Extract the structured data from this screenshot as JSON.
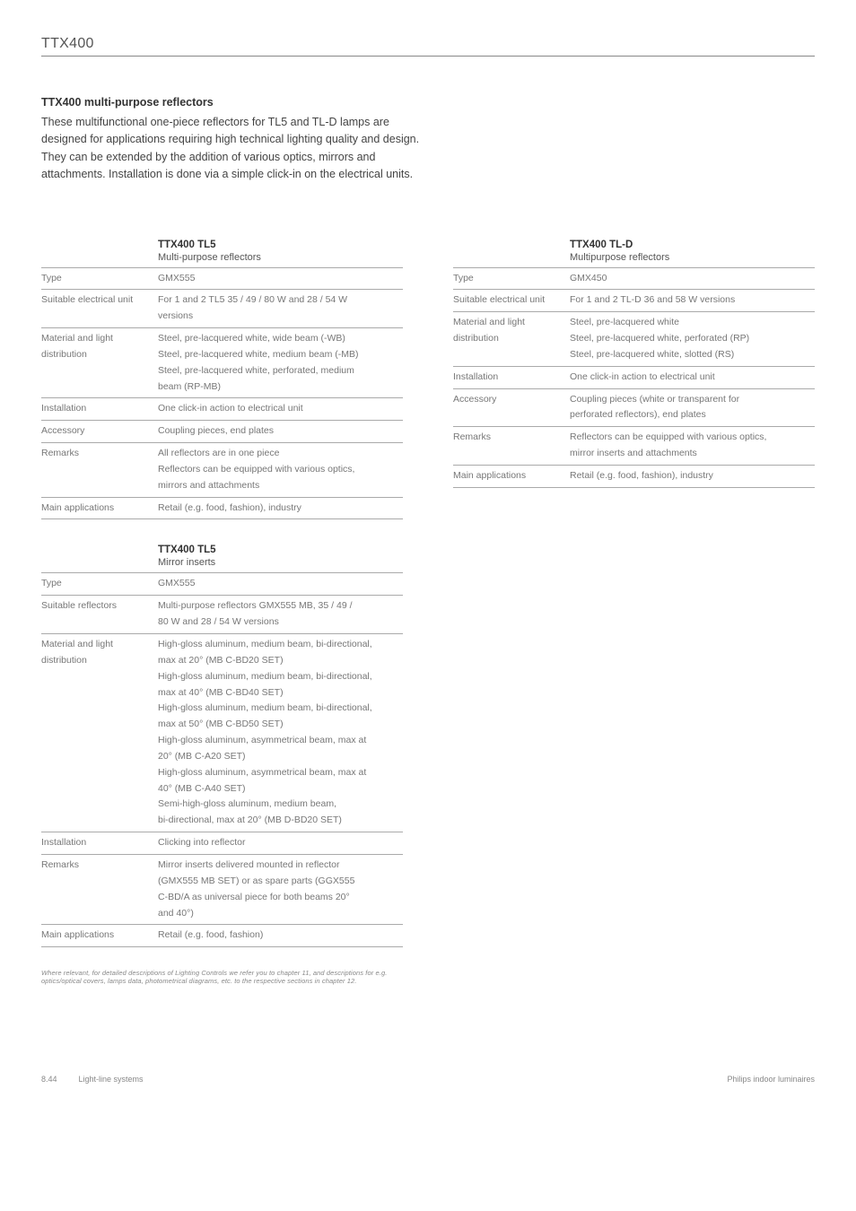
{
  "page_header": "TTX400",
  "intro": {
    "title": "TTX400 multi-purpose reflectors",
    "body": "These multifunctional one-piece reflectors for TL5 and TL-D lamps are designed for applications requiring high technical lighting quality and design. They can be extended by the addition of various optics, mirrors and attachments. Installation is done via a simple click-in on the electrical units."
  },
  "block1": {
    "title": "TTX400 TL5",
    "subtitle": "Multi-purpose reflectors",
    "rows": [
      {
        "label": "Type",
        "lines": [
          "GMX555"
        ]
      },
      {
        "label": "Suitable electrical unit",
        "lines": [
          "For 1 and 2 TL5 35 / 49 / 80 W and 28 / 54 W",
          "versions"
        ]
      },
      {
        "label": "Material and light distribution",
        "lines": [
          "Steel, pre-lacquered white, wide beam (-WB)",
          "Steel, pre-lacquered white, medium beam (-MB)",
          "Steel, pre-lacquered white, perforated, medium",
          "beam (RP-MB)"
        ]
      },
      {
        "label": "Installation",
        "lines": [
          "One click-in action to electrical unit"
        ]
      },
      {
        "label": "Accessory",
        "lines": [
          "Coupling pieces, end plates"
        ]
      },
      {
        "label": "Remarks",
        "lines": [
          "All reflectors are in one piece",
          "Reflectors can be equipped with various optics,",
          "mirrors and attachments"
        ]
      },
      {
        "label": "Main applications",
        "lines": [
          "Retail (e.g. food, fashion), industry"
        ]
      }
    ]
  },
  "block2": {
    "title": "TTX400 TL-D",
    "subtitle": "Multipurpose reflectors",
    "rows": [
      {
        "label": "Type",
        "lines": [
          "GMX450"
        ]
      },
      {
        "label": "Suitable electrical unit",
        "lines": [
          "For 1 and 2 TL-D 36 and 58 W versions"
        ]
      },
      {
        "label": "Material and light distribution",
        "lines": [
          "Steel, pre-lacquered white",
          "Steel, pre-lacquered white, perforated (RP)",
          "Steel, pre-lacquered white, slotted (RS)"
        ]
      },
      {
        "label": "Installation",
        "lines": [
          "One click-in action to electrical unit"
        ]
      },
      {
        "label": "Accessory",
        "lines": [
          "Coupling pieces (white or transparent for",
          "perforated reflectors), end plates"
        ]
      },
      {
        "label": "Remarks",
        "lines": [
          "Reflectors can be equipped with various optics,",
          "mirror inserts and attachments"
        ]
      },
      {
        "label": "Main applications",
        "lines": [
          "Retail (e.g. food, fashion), industry"
        ]
      }
    ]
  },
  "block3": {
    "title": "TTX400 TL5",
    "subtitle": "Mirror inserts",
    "rows": [
      {
        "label": "Type",
        "lines": [
          "GMX555"
        ]
      },
      {
        "label": "Suitable reflectors",
        "lines": [
          "Multi-purpose reflectors GMX555 MB, 35 / 49 /",
          "80 W and 28 / 54 W versions"
        ]
      },
      {
        "label": "Material and light distribution",
        "lines": [
          "High-gloss aluminum, medium beam, bi-directional,",
          "max at 20° (MB C-BD20 SET)",
          "High-gloss aluminum, medium beam, bi-directional,",
          "max at 40° (MB C-BD40 SET)",
          "High-gloss aluminum, medium beam, bi-directional,",
          "max at 50° (MB C-BD50 SET)",
          "High-gloss aluminum, asymmetrical beam, max at",
          "20° (MB C-A20 SET)",
          "High-gloss aluminum, asymmetrical beam, max at",
          "40° (MB C-A40 SET)",
          "Semi-high-gloss aluminum, medium beam,",
          "bi-directional, max at 20° (MB D-BD20 SET)"
        ]
      },
      {
        "label": "Installation",
        "lines": [
          "Clicking into reflector"
        ]
      },
      {
        "label": "Remarks",
        "lines": [
          "Mirror inserts delivered mounted in reflector",
          "(GMX555 MB SET) or as spare parts (GGX555",
          "C-BD/A as universal piece for both beams 20°",
          "and 40°)"
        ]
      },
      {
        "label": "Main applications",
        "lines": [
          "Retail (e.g. food, fashion)"
        ]
      }
    ]
  },
  "footnote": "Where relevant, for detailed descriptions of Lighting Controls we refer you to chapter 11, and descriptions for e.g. optics/optical covers, lamps data, photometrical diagrams, etc. to the respective sections in chapter 12.",
  "footer": {
    "page": "8.44",
    "section": "Light-line systems",
    "right": "Philips indoor luminaires"
  }
}
